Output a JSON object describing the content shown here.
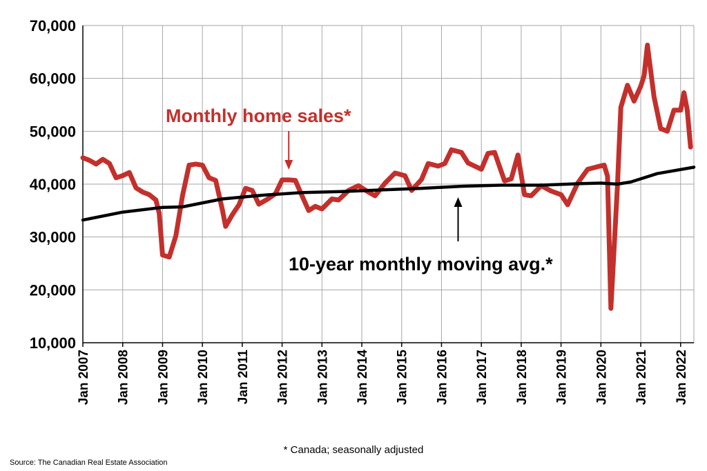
{
  "chart_data": {
    "type": "line",
    "title": "",
    "xlabel": "",
    "ylabel": "",
    "ylim": [
      10000,
      70000
    ],
    "xlim": [
      "2007-01",
      "2022-05"
    ],
    "grid": true,
    "y_ticks": [
      "10,000",
      "20,000",
      "30,000",
      "40,000",
      "50,000",
      "60,000",
      "70,000"
    ],
    "x_ticks": [
      "Jan 2007",
      "Jan 2008",
      "Jan 2009",
      "Jan 2010",
      "Jan 2011",
      "Jan 2012",
      "Jan 2013",
      "Jan 2014",
      "Jan 2015",
      "Jan 2016",
      "Jan 2017",
      "Jan 2018",
      "Jan 2019",
      "Jan 2020",
      "Jan 2021",
      "Jan 2022"
    ],
    "series": [
      {
        "name": "Monthly home sales*",
        "color": "#c3302c",
        "points": [
          [
            "2007-01",
            45000
          ],
          [
            "2007-03",
            44500
          ],
          [
            "2007-05",
            43800
          ],
          [
            "2007-07",
            44700
          ],
          [
            "2007-09",
            43900
          ],
          [
            "2007-11",
            41200
          ],
          [
            "2008-01",
            41600
          ],
          [
            "2008-03",
            42200
          ],
          [
            "2008-05",
            39300
          ],
          [
            "2008-07",
            38500
          ],
          [
            "2008-09",
            38000
          ],
          [
            "2008-11",
            37000
          ],
          [
            "2008-12",
            34500
          ],
          [
            "2009-01",
            26600
          ],
          [
            "2009-03",
            26200
          ],
          [
            "2009-05",
            30200
          ],
          [
            "2009-07",
            37800
          ],
          [
            "2009-09",
            43600
          ],
          [
            "2009-11",
            43800
          ],
          [
            "2010-01",
            43600
          ],
          [
            "2010-03",
            41200
          ],
          [
            "2010-05",
            40700
          ],
          [
            "2010-07",
            35200
          ],
          [
            "2010-08",
            32000
          ],
          [
            "2010-10",
            34200
          ],
          [
            "2010-12",
            36100
          ],
          [
            "2011-02",
            39200
          ],
          [
            "2011-04",
            38800
          ],
          [
            "2011-06",
            36200
          ],
          [
            "2011-09",
            37300
          ],
          [
            "2011-11",
            38200
          ],
          [
            "2012-01",
            40800
          ],
          [
            "2012-03",
            40800
          ],
          [
            "2012-05",
            40700
          ],
          [
            "2012-07",
            37800
          ],
          [
            "2012-09",
            35000
          ],
          [
            "2012-11",
            35800
          ],
          [
            "2013-01",
            35300
          ],
          [
            "2013-04",
            37200
          ],
          [
            "2013-06",
            37000
          ],
          [
            "2013-09",
            38800
          ],
          [
            "2013-12",
            39700
          ],
          [
            "2014-03",
            38500
          ],
          [
            "2014-05",
            37800
          ],
          [
            "2014-08",
            40200
          ],
          [
            "2014-11",
            42100
          ],
          [
            "2015-02",
            41600
          ],
          [
            "2015-04",
            38800
          ],
          [
            "2015-07",
            40900
          ],
          [
            "2015-09",
            43900
          ],
          [
            "2015-12",
            43400
          ],
          [
            "2016-02",
            43900
          ],
          [
            "2016-04",
            46500
          ],
          [
            "2016-07",
            46000
          ],
          [
            "2016-09",
            44000
          ],
          [
            "2016-11",
            43400
          ],
          [
            "2017-01",
            42800
          ],
          [
            "2017-03",
            45800
          ],
          [
            "2017-05",
            46000
          ],
          [
            "2017-08",
            40600
          ],
          [
            "2017-10",
            41000
          ],
          [
            "2017-12",
            45500
          ],
          [
            "2018-02",
            38000
          ],
          [
            "2018-04",
            37800
          ],
          [
            "2018-07",
            39700
          ],
          [
            "2018-10",
            38700
          ],
          [
            "2019-01",
            38000
          ],
          [
            "2019-03",
            36100
          ],
          [
            "2019-06",
            40200
          ],
          [
            "2019-09",
            42800
          ],
          [
            "2019-12",
            43300
          ],
          [
            "2020-02",
            43600
          ],
          [
            "2020-03",
            41500
          ],
          [
            "2020-04",
            16500
          ],
          [
            "2020-06",
            40000
          ],
          [
            "2020-07",
            54500
          ],
          [
            "2020-09",
            58700
          ],
          [
            "2020-11",
            55700
          ],
          [
            "2021-01",
            58500
          ],
          [
            "2021-02",
            60500
          ],
          [
            "2021-03",
            66300
          ],
          [
            "2021-05",
            56500
          ],
          [
            "2021-07",
            50500
          ],
          [
            "2021-09",
            50000
          ],
          [
            "2021-11",
            54000
          ],
          [
            "2022-01",
            54000
          ],
          [
            "2022-02",
            57300
          ],
          [
            "2022-03",
            54000
          ],
          [
            "2022-04",
            47000
          ]
        ]
      },
      {
        "name": "10-year monthly moving avg.*",
        "color": "#000000",
        "points": [
          [
            "2007-01",
            33200
          ],
          [
            "2008-01",
            34700
          ],
          [
            "2009-01",
            35600
          ],
          [
            "2009-07",
            35700
          ],
          [
            "2010-07",
            37200
          ],
          [
            "2011-07",
            37900
          ],
          [
            "2012-07",
            38400
          ],
          [
            "2013-07",
            38600
          ],
          [
            "2014-07",
            38900
          ],
          [
            "2015-07",
            39200
          ],
          [
            "2016-07",
            39600
          ],
          [
            "2017-07",
            39800
          ],
          [
            "2018-07",
            39800
          ],
          [
            "2019-07",
            40100
          ],
          [
            "2020-01",
            40200
          ],
          [
            "2020-06",
            40000
          ],
          [
            "2020-10",
            40400
          ],
          [
            "2021-06",
            42000
          ],
          [
            "2022-05",
            43200
          ]
        ]
      }
    ],
    "annotations": [
      {
        "text": "Monthly home sales*",
        "color": "#c3302c",
        "arrow_to": [
          "2012-03",
          41000
        ]
      },
      {
        "text": "10-year monthly moving avg.*",
        "color": "#000000",
        "arrow_to": [
          "2016-06",
          39600
        ]
      }
    ]
  },
  "footnote": "* Canada; seasonally adjusted",
  "source": "Source: The Canadian Real Estate Association"
}
